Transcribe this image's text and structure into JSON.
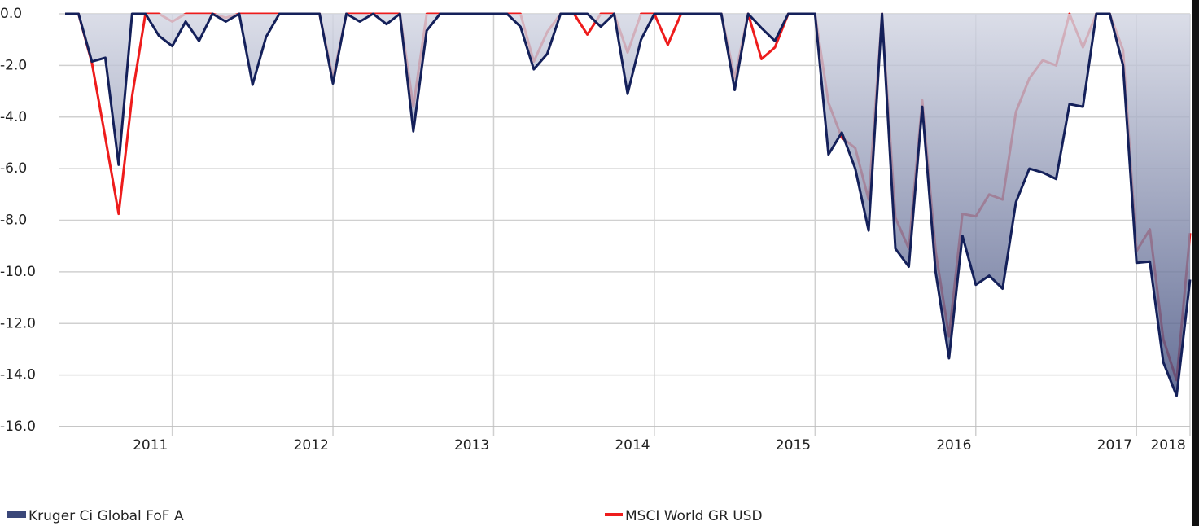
{
  "chart_data": {
    "type": "area_line",
    "categories": [
      null,
      null,
      null,
      null,
      null,
      null,
      "2011",
      null,
      null,
      null,
      null,
      null,
      null,
      null,
      null,
      null,
      null,
      null,
      "2012",
      null,
      null,
      null,
      null,
      null,
      null,
      null,
      null,
      null,
      null,
      null,
      "2013",
      null,
      null,
      null,
      null,
      null,
      null,
      null,
      null,
      null,
      null,
      null,
      "2014",
      null,
      null,
      null,
      null,
      null,
      null,
      null,
      null,
      null,
      null,
      null,
      "2015",
      null,
      null,
      null,
      null,
      null,
      null,
      null,
      null,
      null,
      null,
      null,
      "2016",
      null,
      null,
      null,
      null,
      null,
      null,
      null,
      null,
      null,
      null,
      null,
      "2017",
      null,
      null,
      null,
      "2018",
      null,
      null
    ],
    "series": [
      {
        "name": "Kruger Ci Global FoF A",
        "kind": "area",
        "color": "#14205a",
        "fill_top": "#d3d6e3",
        "fill_bottom": "#3a4779",
        "values": [
          0,
          0,
          -1.85,
          -1.7,
          -5.85,
          0,
          0,
          -0.85,
          -1.25,
          -0.3,
          -1.05,
          0,
          -0.3,
          0,
          -2.75,
          -0.9,
          0,
          0,
          0,
          0,
          -2.7,
          0,
          -0.3,
          0,
          -0.4,
          0,
          -4.55,
          -0.65,
          0,
          0,
          0,
          0,
          0,
          0,
          -0.5,
          -2.15,
          -1.55,
          0,
          0,
          0,
          -0.5,
          0,
          -3.1,
          -1.0,
          0,
          0,
          0,
          0,
          0,
          0,
          -2.95,
          0,
          -0.55,
          -1.05,
          0,
          0,
          0,
          -5.45,
          -4.6,
          -6.0,
          -8.4,
          0,
          -9.1,
          -9.8,
          -3.6,
          -10.0,
          -13.35,
          -8.6,
          -10.5,
          -10.15,
          -10.65,
          -7.3,
          -6.0,
          -6.15,
          -6.4,
          -3.5,
          -3.6,
          0,
          0,
          -2.0,
          -9.65,
          -9.6,
          -13.5,
          -14.8,
          -10.3
        ]
      },
      {
        "name": "MSCI World GR USD",
        "kind": "line",
        "color": "#ee1c1c",
        "values": [
          0,
          0,
          -1.9,
          -4.8,
          -7.75,
          -3.2,
          0,
          0,
          -0.3,
          0,
          0,
          0,
          -0.15,
          0,
          0,
          0,
          0,
          0,
          0,
          0,
          -2.5,
          0,
          0,
          0,
          0,
          0,
          -3.6,
          0,
          0,
          0,
          0,
          0,
          0,
          0,
          0,
          -1.85,
          -0.7,
          0,
          0,
          -0.8,
          0,
          0,
          -1.5,
          0,
          0,
          -1.2,
          0,
          0,
          0,
          0,
          -2.5,
          0,
          -1.75,
          -1.3,
          0,
          0,
          0,
          -3.45,
          -4.8,
          -5.2,
          -7.2,
          0,
          -7.9,
          -9.1,
          -3.35,
          -9.2,
          -12.5,
          -7.75,
          -7.85,
          -7.0,
          -7.2,
          -3.8,
          -2.5,
          -1.8,
          -2.0,
          0,
          -1.3,
          0,
          0,
          -1.4,
          -9.2,
          -8.35,
          -12.6,
          -14.2,
          -8.5
        ]
      }
    ],
    "ylim": [
      -16,
      0
    ],
    "yticks": [
      {
        "value": 0,
        "label": "0.0"
      },
      {
        "value": -2,
        "label": "-2.0"
      },
      {
        "value": -4,
        "label": "-4.0"
      },
      {
        "value": -6,
        "label": "-6.0"
      },
      {
        "value": -8,
        "label": "-8.0"
      },
      {
        "value": -10,
        "label": "-10.0"
      },
      {
        "value": -12,
        "label": "-12.0"
      },
      {
        "value": -14,
        "label": "-14.0"
      },
      {
        "value": -16,
        "label": "-16.0"
      }
    ],
    "grid": true
  }
}
